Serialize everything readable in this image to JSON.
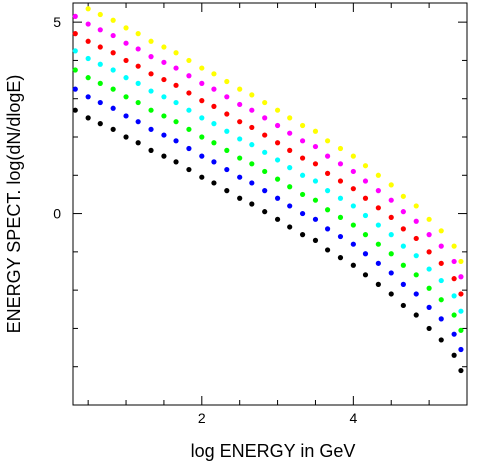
{
  "chart_data": {
    "type": "scatter",
    "title": "",
    "xlabel": "log ENERGY  in GeV",
    "ylabel": "ENERGY SPECT. log(dN/dlogE)",
    "xlim": [
      0.3,
      5.5
    ],
    "ylim": [
      -5.0,
      5.5
    ],
    "x_major_ticks": [
      2,
      4
    ],
    "x_tick_labels": [
      "2",
      "4"
    ],
    "y_major_ticks": [
      0,
      5
    ],
    "y_tick_labels": [
      "0",
      "5"
    ],
    "grid": false,
    "legend": "none",
    "series": [
      {
        "color": "#000000",
        "x": [
          0.33,
          0.5,
          0.66,
          0.83,
          1.0,
          1.16,
          1.33,
          1.5,
          1.66,
          1.83,
          2.0,
          2.16,
          2.33,
          2.5,
          2.66,
          2.83,
          3.0,
          3.16,
          3.33,
          3.5,
          3.66,
          3.83,
          4.0,
          4.16,
          4.33,
          4.5,
          4.66,
          4.83,
          5.0,
          5.16,
          5.33,
          5.42
        ],
        "y": [
          2.7,
          2.5,
          2.35,
          2.2,
          2.0,
          1.85,
          1.65,
          1.5,
          1.35,
          1.15,
          0.95,
          0.8,
          0.6,
          0.4,
          0.25,
          0.05,
          -0.15,
          -0.35,
          -0.55,
          -0.7,
          -0.95,
          -1.15,
          -1.35,
          -1.6,
          -1.85,
          -2.1,
          -2.4,
          -2.65,
          -3.0,
          -3.3,
          -3.7,
          -4.1
        ]
      },
      {
        "color": "#0000ff",
        "x": [
          0.33,
          0.5,
          0.66,
          0.83,
          1.0,
          1.16,
          1.33,
          1.5,
          1.66,
          1.83,
          2.0,
          2.16,
          2.33,
          2.5,
          2.66,
          2.83,
          3.0,
          3.16,
          3.33,
          3.5,
          3.66,
          3.83,
          4.0,
          4.16,
          4.33,
          4.5,
          4.66,
          4.83,
          5.0,
          5.16,
          5.33,
          5.42
        ],
        "y": [
          3.25,
          3.05,
          2.9,
          2.75,
          2.55,
          2.4,
          2.2,
          2.05,
          1.9,
          1.7,
          1.5,
          1.35,
          1.15,
          0.95,
          0.8,
          0.6,
          0.4,
          0.2,
          0.0,
          -0.15,
          -0.4,
          -0.6,
          -0.8,
          -1.05,
          -1.3,
          -1.55,
          -1.85,
          -2.1,
          -2.45,
          -2.75,
          -3.15,
          -3.55
        ]
      },
      {
        "color": "#00ff00",
        "x": [
          0.33,
          0.5,
          0.66,
          0.83,
          1.0,
          1.16,
          1.33,
          1.5,
          1.66,
          1.83,
          2.0,
          2.16,
          2.33,
          2.5,
          2.66,
          2.83,
          3.0,
          3.16,
          3.33,
          3.5,
          3.66,
          3.83,
          4.0,
          4.16,
          4.33,
          4.5,
          4.66,
          4.83,
          5.0,
          5.16,
          5.33,
          5.42
        ],
        "y": [
          3.75,
          3.55,
          3.4,
          3.25,
          3.05,
          2.9,
          2.7,
          2.55,
          2.4,
          2.2,
          2.0,
          1.85,
          1.65,
          1.45,
          1.3,
          1.1,
          0.9,
          0.7,
          0.5,
          0.35,
          0.1,
          -0.1,
          -0.3,
          -0.55,
          -0.8,
          -1.05,
          -1.35,
          -1.6,
          -1.95,
          -2.25,
          -2.65,
          -3.05
        ]
      },
      {
        "color": "#00ffff",
        "x": [
          0.33,
          0.5,
          0.66,
          0.83,
          1.0,
          1.16,
          1.33,
          1.5,
          1.66,
          1.83,
          2.0,
          2.16,
          2.33,
          2.5,
          2.66,
          2.83,
          3.0,
          3.16,
          3.33,
          3.5,
          3.66,
          3.83,
          4.0,
          4.16,
          4.33,
          4.5,
          4.66,
          4.83,
          5.0,
          5.16,
          5.33,
          5.42
        ],
        "y": [
          4.25,
          4.05,
          3.9,
          3.75,
          3.55,
          3.4,
          3.2,
          3.05,
          2.9,
          2.7,
          2.5,
          2.35,
          2.15,
          1.95,
          1.8,
          1.6,
          1.4,
          1.2,
          1.0,
          0.85,
          0.6,
          0.4,
          0.2,
          -0.05,
          -0.3,
          -0.55,
          -0.85,
          -1.1,
          -1.45,
          -1.75,
          -2.15,
          -2.55
        ]
      },
      {
        "color": "#ff0000",
        "x": [
          0.33,
          0.5,
          0.66,
          0.83,
          1.0,
          1.16,
          1.33,
          1.5,
          1.66,
          1.83,
          2.0,
          2.16,
          2.33,
          2.5,
          2.66,
          2.83,
          3.0,
          3.16,
          3.33,
          3.5,
          3.66,
          3.83,
          4.0,
          4.16,
          4.33,
          4.5,
          4.66,
          4.83,
          5.0,
          5.16,
          5.33,
          5.42
        ],
        "y": [
          4.7,
          4.5,
          4.35,
          4.2,
          4.0,
          3.85,
          3.65,
          3.5,
          3.35,
          3.15,
          2.95,
          2.8,
          2.6,
          2.4,
          2.25,
          2.05,
          1.85,
          1.65,
          1.45,
          1.3,
          1.05,
          0.85,
          0.65,
          0.4,
          0.15,
          -0.1,
          -0.4,
          -0.65,
          -1.0,
          -1.3,
          -1.7,
          -2.1
        ]
      },
      {
        "color": "#ff00ff",
        "x": [
          0.33,
          0.5,
          0.66,
          0.83,
          1.0,
          1.16,
          1.33,
          1.5,
          1.66,
          1.83,
          2.0,
          2.16,
          2.33,
          2.5,
          2.66,
          2.83,
          3.0,
          3.16,
          3.33,
          3.5,
          3.66,
          3.83,
          4.0,
          4.16,
          4.33,
          4.5,
          4.66,
          4.83,
          5.0,
          5.16,
          5.33,
          5.42
        ],
        "y": [
          5.15,
          4.95,
          4.8,
          4.65,
          4.45,
          4.3,
          4.1,
          3.95,
          3.8,
          3.6,
          3.4,
          3.25,
          3.05,
          2.85,
          2.7,
          2.5,
          2.3,
          2.1,
          1.9,
          1.75,
          1.5,
          1.3,
          1.1,
          0.85,
          0.6,
          0.35,
          0.05,
          -0.2,
          -0.55,
          -0.85,
          -1.25,
          -1.65
        ]
      },
      {
        "color": "#ffff00",
        "x": [
          0.5,
          0.66,
          0.83,
          1.0,
          1.16,
          1.33,
          1.5,
          1.66,
          1.83,
          2.0,
          2.16,
          2.33,
          2.5,
          2.66,
          2.83,
          3.0,
          3.16,
          3.33,
          3.5,
          3.66,
          3.83,
          4.0,
          4.16,
          4.33,
          4.5,
          4.66,
          4.83,
          5.0,
          5.16,
          5.33,
          5.42
        ],
        "y": [
          5.35,
          5.2,
          5.05,
          4.85,
          4.7,
          4.5,
          4.35,
          4.2,
          4.0,
          3.8,
          3.65,
          3.45,
          3.25,
          3.1,
          2.9,
          2.7,
          2.5,
          2.3,
          2.15,
          1.9,
          1.7,
          1.5,
          1.25,
          1.0,
          0.75,
          0.45,
          0.2,
          -0.15,
          -0.45,
          -0.85,
          -1.25
        ]
      }
    ]
  }
}
